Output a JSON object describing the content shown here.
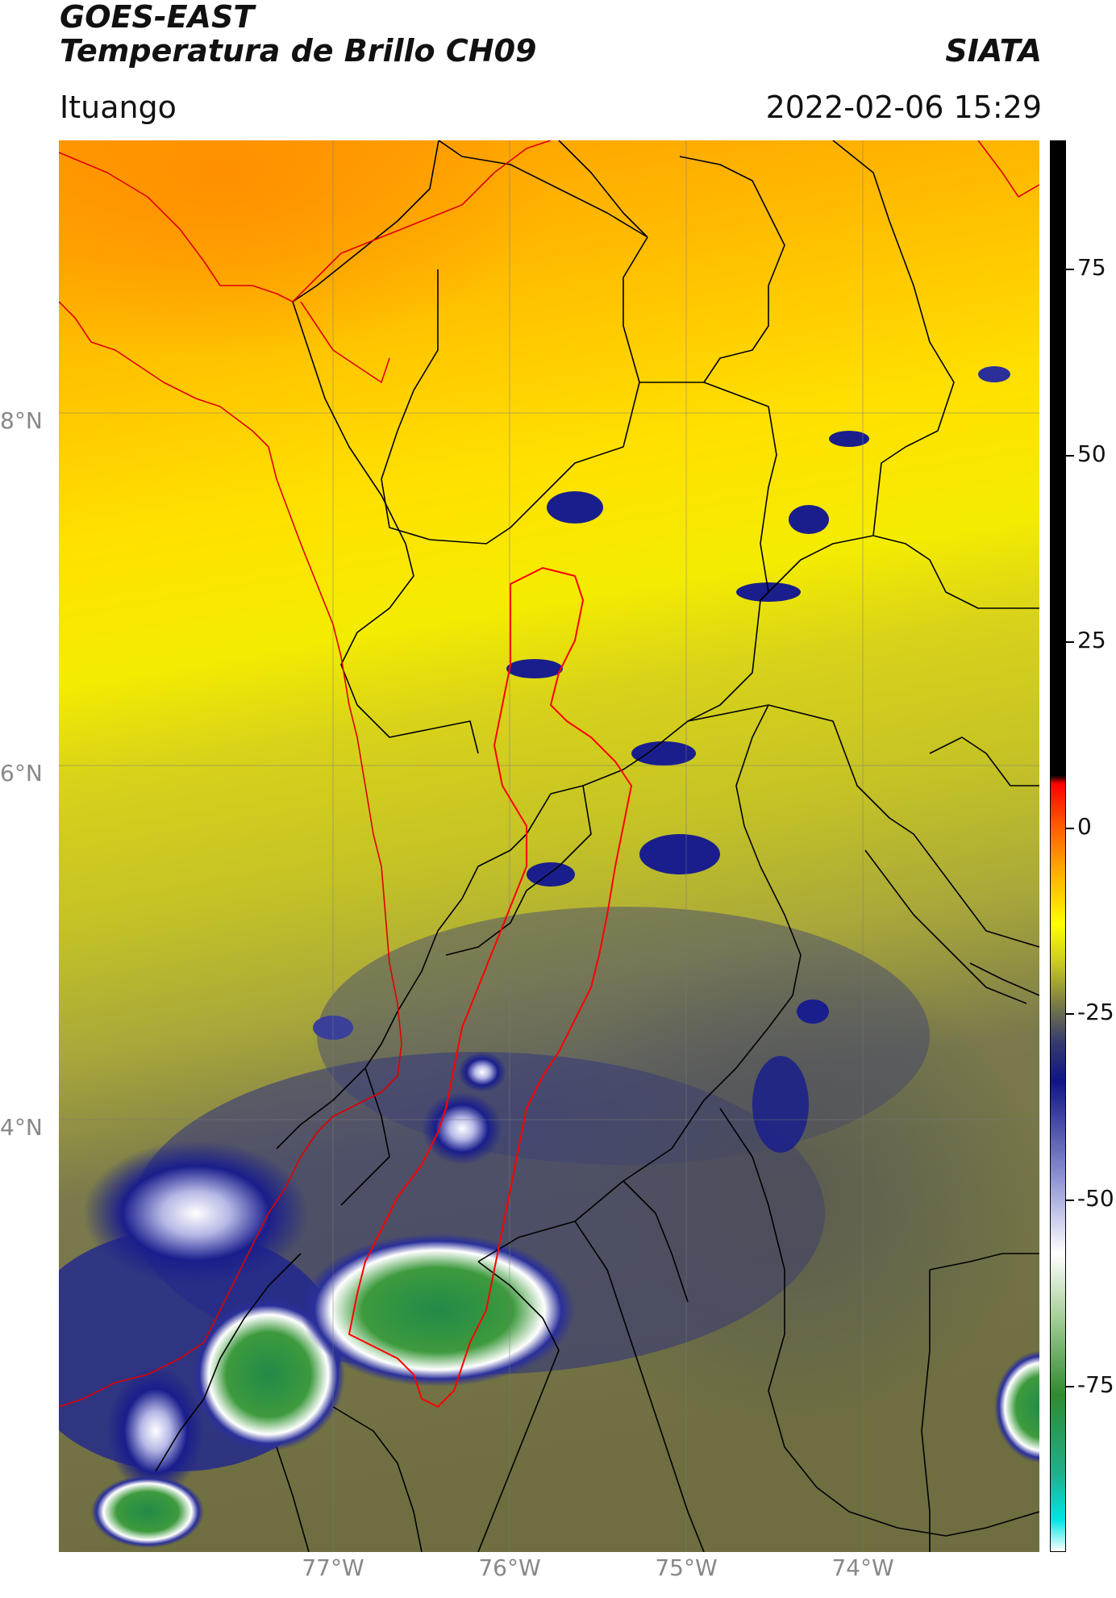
{
  "header": {
    "satellite": "GOES-EAST",
    "product": "Temperatura de Brillo CH09",
    "agency": "SIATA",
    "region": "Ituango",
    "timestamp": "2022-02-06 15:29"
  },
  "map": {
    "lat_labels": [
      "8°N",
      "6°N",
      "4°N"
    ],
    "lon_labels": [
      "77°W",
      "76°W",
      "75°W",
      "74°W"
    ],
    "lat_values": [
      8,
      6,
      4
    ],
    "lon_values": [
      -77,
      -76,
      -75,
      -74
    ],
    "extent": {
      "lon_min": -78.55,
      "lon_max": -73.0,
      "lat_min": 1.5,
      "lat_max": 9.55
    },
    "watershed_outline_color": "#ff0000",
    "coastline_color": "#e00000",
    "admin_border_color": "#000000"
  },
  "colorbar": {
    "ticks": [
      "75",
      "50",
      "25",
      "0",
      "-25",
      "-50",
      "-75"
    ],
    "tick_values": [
      75,
      50,
      25,
      0,
      -25,
      -50,
      -75
    ],
    "range": [
      -90,
      90
    ],
    "stops": [
      {
        "value": -90,
        "color": "#ffffff"
      },
      {
        "value": -86,
        "color": "#00e5e5"
      },
      {
        "value": -80,
        "color": "#20b08a"
      },
      {
        "value": -70,
        "color": "#2f8a2f"
      },
      {
        "value": -60,
        "color": "#a8cf9a"
      },
      {
        "value": -52,
        "color": "#ffffff"
      },
      {
        "value": -42,
        "color": "#8a8fd0"
      },
      {
        "value": -30,
        "color": "#101585"
      },
      {
        "value": -25,
        "color": "#353b6e"
      },
      {
        "value": -20,
        "color": "#7d7d45"
      },
      {
        "value": -15,
        "color": "#c8c820"
      },
      {
        "value": -10,
        "color": "#ffff00"
      },
      {
        "value": -3,
        "color": "#ffaa00"
      },
      {
        "value": 3,
        "color": "#ff5500"
      },
      {
        "value": 8,
        "color": "#ff0000"
      },
      {
        "value": 9,
        "color": "#000000"
      },
      {
        "value": 90,
        "color": "#000000"
      }
    ]
  }
}
